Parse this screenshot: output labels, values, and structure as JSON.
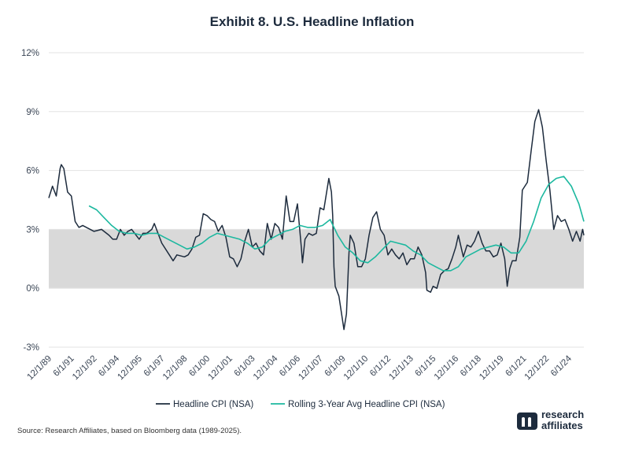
{
  "chart_data": {
    "type": "line",
    "title": "Exhibit 8. U.S. Headline Inflation",
    "y_unit": "%",
    "ylim": [
      -3,
      12
    ],
    "y_ticks": [
      "12%",
      "9%",
      "6%",
      "3%",
      "0%",
      "-3%"
    ],
    "x_range": [
      "1989-12-01",
      "2025-06-01"
    ],
    "x_tick_labels": [
      "12/1/89",
      "6/1/91",
      "12/1/92",
      "6/1/94",
      "12/1/95",
      "6/1/97",
      "12/1/98",
      "6/1/00",
      "12/1/01",
      "6/1/03",
      "12/1/04",
      "6/1/06",
      "12/1/07",
      "6/1/09",
      "12/1/10",
      "6/1/12",
      "12/1/13",
      "6/1/15",
      "12/1/16",
      "6/1/18",
      "12/1/19",
      "6/1/21",
      "12/1/22",
      "6/1/24"
    ],
    "x_tick_dates": [
      "1989-12-01",
      "1991-06-01",
      "1992-12-01",
      "1994-06-01",
      "1995-12-01",
      "1997-06-01",
      "1998-12-01",
      "2000-06-01",
      "2001-12-01",
      "2003-06-01",
      "2004-12-01",
      "2006-06-01",
      "2007-12-01",
      "2009-06-01",
      "2010-12-01",
      "2012-06-01",
      "2013-12-01",
      "2015-06-01",
      "2016-12-01",
      "2018-06-01",
      "2019-12-01",
      "2021-06-01",
      "2022-12-01",
      "2024-06-01"
    ],
    "shaded_band": [
      0,
      3
    ],
    "grid": "horizontal",
    "legend_position": "bottom",
    "series": [
      {
        "name": "Headline CPI (NSA)",
        "color": "#1d2b3d",
        "points": [
          [
            "1989-12-01",
            4.6
          ],
          [
            "1990-03-01",
            5.2
          ],
          [
            "1990-06-01",
            4.7
          ],
          [
            "1990-09-01",
            6.1
          ],
          [
            "1990-10-01",
            6.3
          ],
          [
            "1990-12-01",
            6.1
          ],
          [
            "1991-03-01",
            4.9
          ],
          [
            "1991-06-01",
            4.7
          ],
          [
            "1991-09-01",
            3.4
          ],
          [
            "1991-12-01",
            3.1
          ],
          [
            "1992-03-01",
            3.2
          ],
          [
            "1992-06-01",
            3.1
          ],
          [
            "1992-09-01",
            3.0
          ],
          [
            "1992-12-01",
            2.9
          ],
          [
            "1993-06-01",
            3.0
          ],
          [
            "1993-12-01",
            2.7
          ],
          [
            "1994-03-01",
            2.5
          ],
          [
            "1994-06-01",
            2.5
          ],
          [
            "1994-09-01",
            3.0
          ],
          [
            "1994-12-01",
            2.7
          ],
          [
            "1995-03-01",
            2.9
          ],
          [
            "1995-06-01",
            3.0
          ],
          [
            "1995-12-01",
            2.5
          ],
          [
            "1996-03-01",
            2.8
          ],
          [
            "1996-06-01",
            2.8
          ],
          [
            "1996-10-01",
            3.0
          ],
          [
            "1996-12-01",
            3.3
          ],
          [
            "1997-03-01",
            2.8
          ],
          [
            "1997-06-01",
            2.3
          ],
          [
            "1997-12-01",
            1.7
          ],
          [
            "1998-03-01",
            1.4
          ],
          [
            "1998-06-01",
            1.7
          ],
          [
            "1998-12-01",
            1.6
          ],
          [
            "1999-03-01",
            1.7
          ],
          [
            "1999-06-01",
            2.0
          ],
          [
            "1999-09-01",
            2.6
          ],
          [
            "1999-12-01",
            2.7
          ],
          [
            "2000-03-01",
            3.8
          ],
          [
            "2000-06-01",
            3.7
          ],
          [
            "2000-09-01",
            3.5
          ],
          [
            "2000-12-01",
            3.4
          ],
          [
            "2001-03-01",
            2.9
          ],
          [
            "2001-06-01",
            3.2
          ],
          [
            "2001-09-01",
            2.6
          ],
          [
            "2001-12-01",
            1.6
          ],
          [
            "2002-03-01",
            1.5
          ],
          [
            "2002-06-01",
            1.1
          ],
          [
            "2002-09-01",
            1.5
          ],
          [
            "2002-12-01",
            2.4
          ],
          [
            "2003-03-01",
            3.0
          ],
          [
            "2003-06-01",
            2.1
          ],
          [
            "2003-09-01",
            2.3
          ],
          [
            "2003-12-01",
            1.9
          ],
          [
            "2004-03-01",
            1.7
          ],
          [
            "2004-06-01",
            3.3
          ],
          [
            "2004-09-01",
            2.5
          ],
          [
            "2004-12-01",
            3.3
          ],
          [
            "2005-03-01",
            3.1
          ],
          [
            "2005-06-01",
            2.5
          ],
          [
            "2005-09-01",
            4.7
          ],
          [
            "2005-12-01",
            3.4
          ],
          [
            "2006-03-01",
            3.4
          ],
          [
            "2006-06-01",
            4.3
          ],
          [
            "2006-09-01",
            2.1
          ],
          [
            "2006-10-01",
            1.3
          ],
          [
            "2006-12-01",
            2.5
          ],
          [
            "2007-03-01",
            2.8
          ],
          [
            "2007-06-01",
            2.7
          ],
          [
            "2007-09-01",
            2.8
          ],
          [
            "2007-12-01",
            4.1
          ],
          [
            "2008-03-01",
            4.0
          ],
          [
            "2008-07-01",
            5.6
          ],
          [
            "2008-09-01",
            4.9
          ],
          [
            "2008-10-01",
            3.7
          ],
          [
            "2008-11-01",
            1.1
          ],
          [
            "2008-12-01",
            0.1
          ],
          [
            "2009-03-01",
            -0.4
          ],
          [
            "2009-07-01",
            -2.1
          ],
          [
            "2009-09-01",
            -1.3
          ],
          [
            "2009-11-01",
            1.8
          ],
          [
            "2009-12-01",
            2.7
          ],
          [
            "2010-03-01",
            2.3
          ],
          [
            "2010-06-01",
            1.1
          ],
          [
            "2010-09-01",
            1.1
          ],
          [
            "2010-12-01",
            1.5
          ],
          [
            "2011-03-01",
            2.7
          ],
          [
            "2011-06-01",
            3.6
          ],
          [
            "2011-09-01",
            3.9
          ],
          [
            "2011-12-01",
            3.0
          ],
          [
            "2012-03-01",
            2.7
          ],
          [
            "2012-06-01",
            1.7
          ],
          [
            "2012-09-01",
            2.0
          ],
          [
            "2012-12-01",
            1.7
          ],
          [
            "2013-03-01",
            1.5
          ],
          [
            "2013-06-01",
            1.8
          ],
          [
            "2013-09-01",
            1.2
          ],
          [
            "2013-12-01",
            1.5
          ],
          [
            "2014-03-01",
            1.5
          ],
          [
            "2014-06-01",
            2.1
          ],
          [
            "2014-09-01",
            1.7
          ],
          [
            "2014-12-01",
            0.8
          ],
          [
            "2015-01-01",
            -0.1
          ],
          [
            "2015-04-01",
            -0.2
          ],
          [
            "2015-06-01",
            0.1
          ],
          [
            "2015-09-01",
            0.0
          ],
          [
            "2015-12-01",
            0.7
          ],
          [
            "2016-03-01",
            0.9
          ],
          [
            "2016-06-01",
            1.0
          ],
          [
            "2016-09-01",
            1.5
          ],
          [
            "2016-12-01",
            2.1
          ],
          [
            "2017-02-01",
            2.7
          ],
          [
            "2017-06-01",
            1.6
          ],
          [
            "2017-09-01",
            2.2
          ],
          [
            "2017-12-01",
            2.1
          ],
          [
            "2018-03-01",
            2.4
          ],
          [
            "2018-06-01",
            2.9
          ],
          [
            "2018-09-01",
            2.3
          ],
          [
            "2018-12-01",
            1.9
          ],
          [
            "2019-03-01",
            1.9
          ],
          [
            "2019-06-01",
            1.6
          ],
          [
            "2019-09-01",
            1.7
          ],
          [
            "2019-12-01",
            2.3
          ],
          [
            "2020-03-01",
            1.5
          ],
          [
            "2020-05-01",
            0.1
          ],
          [
            "2020-07-01",
            1.0
          ],
          [
            "2020-09-01",
            1.4
          ],
          [
            "2020-12-01",
            1.4
          ],
          [
            "2021-03-01",
            2.6
          ],
          [
            "2021-05-01",
            5.0
          ],
          [
            "2021-09-01",
            5.4
          ],
          [
            "2021-12-01",
            7.0
          ],
          [
            "2022-03-01",
            8.5
          ],
          [
            "2022-06-01",
            9.1
          ],
          [
            "2022-09-01",
            8.2
          ],
          [
            "2022-12-01",
            6.5
          ],
          [
            "2023-03-01",
            5.0
          ],
          [
            "2023-06-01",
            3.0
          ],
          [
            "2023-09-01",
            3.7
          ],
          [
            "2023-12-01",
            3.4
          ],
          [
            "2024-03-01",
            3.5
          ],
          [
            "2024-06-01",
            3.0
          ],
          [
            "2024-09-01",
            2.4
          ],
          [
            "2024-12-01",
            2.9
          ],
          [
            "2025-03-01",
            2.4
          ],
          [
            "2025-05-01",
            3.0
          ],
          [
            "2025-06-01",
            2.7
          ]
        ]
      },
      {
        "name": "Rolling 3-Year Avg Headline CPI (NSA)",
        "color": "#1cb89f",
        "points": [
          [
            "1992-08-01",
            4.2
          ],
          [
            "1993-02-01",
            4.0
          ],
          [
            "1993-08-01",
            3.6
          ],
          [
            "1994-02-01",
            3.2
          ],
          [
            "1994-08-01",
            2.9
          ],
          [
            "1995-02-01",
            2.8
          ],
          [
            "1995-08-01",
            2.8
          ],
          [
            "1996-02-01",
            2.7
          ],
          [
            "1996-08-01",
            2.8
          ],
          [
            "1997-02-01",
            2.8
          ],
          [
            "1997-08-01",
            2.6
          ],
          [
            "1998-02-01",
            2.4
          ],
          [
            "1998-08-01",
            2.2
          ],
          [
            "1999-02-01",
            2.0
          ],
          [
            "1999-08-01",
            2.1
          ],
          [
            "2000-02-01",
            2.3
          ],
          [
            "2000-08-01",
            2.6
          ],
          [
            "2001-02-01",
            2.8
          ],
          [
            "2001-08-01",
            2.7
          ],
          [
            "2002-02-01",
            2.6
          ],
          [
            "2002-08-01",
            2.5
          ],
          [
            "2003-02-01",
            2.3
          ],
          [
            "2003-08-01",
            2.0
          ],
          [
            "2004-02-01",
            2.1
          ],
          [
            "2004-08-01",
            2.5
          ],
          [
            "2005-02-01",
            2.7
          ],
          [
            "2005-08-01",
            2.9
          ],
          [
            "2006-02-01",
            3.0
          ],
          [
            "2006-08-01",
            3.2
          ],
          [
            "2007-02-01",
            3.1
          ],
          [
            "2007-08-01",
            3.1
          ],
          [
            "2008-02-01",
            3.2
          ],
          [
            "2008-08-01",
            3.5
          ],
          [
            "2009-02-01",
            2.7
          ],
          [
            "2009-08-01",
            2.1
          ],
          [
            "2010-02-01",
            1.8
          ],
          [
            "2010-08-01",
            1.4
          ],
          [
            "2011-02-01",
            1.3
          ],
          [
            "2011-08-01",
            1.6
          ],
          [
            "2012-02-01",
            2.0
          ],
          [
            "2012-08-01",
            2.4
          ],
          [
            "2013-02-01",
            2.3
          ],
          [
            "2013-08-01",
            2.2
          ],
          [
            "2014-02-01",
            1.9
          ],
          [
            "2014-08-01",
            1.7
          ],
          [
            "2015-02-01",
            1.3
          ],
          [
            "2015-08-01",
            1.1
          ],
          [
            "2016-02-01",
            0.9
          ],
          [
            "2016-08-01",
            0.9
          ],
          [
            "2017-02-01",
            1.1
          ],
          [
            "2017-08-01",
            1.6
          ],
          [
            "2018-02-01",
            1.8
          ],
          [
            "2018-08-01",
            2.0
          ],
          [
            "2019-02-01",
            2.1
          ],
          [
            "2019-08-01",
            2.2
          ],
          [
            "2020-02-01",
            2.1
          ],
          [
            "2020-08-01",
            1.8
          ],
          [
            "2021-02-01",
            1.8
          ],
          [
            "2021-08-01",
            2.4
          ],
          [
            "2022-02-01",
            3.4
          ],
          [
            "2022-08-01",
            4.6
          ],
          [
            "2023-02-01",
            5.3
          ],
          [
            "2023-08-01",
            5.6
          ],
          [
            "2024-02-01",
            5.7
          ],
          [
            "2024-08-01",
            5.2
          ],
          [
            "2025-02-01",
            4.3
          ],
          [
            "2025-06-01",
            3.4
          ]
        ]
      }
    ]
  },
  "source_text": "Source: Research Affiliates, based on Bloomberg data (1989-2025).",
  "logo": {
    "line1": "research",
    "line2": "affiliates",
    "mark": "research-affiliates-logo-icon"
  }
}
